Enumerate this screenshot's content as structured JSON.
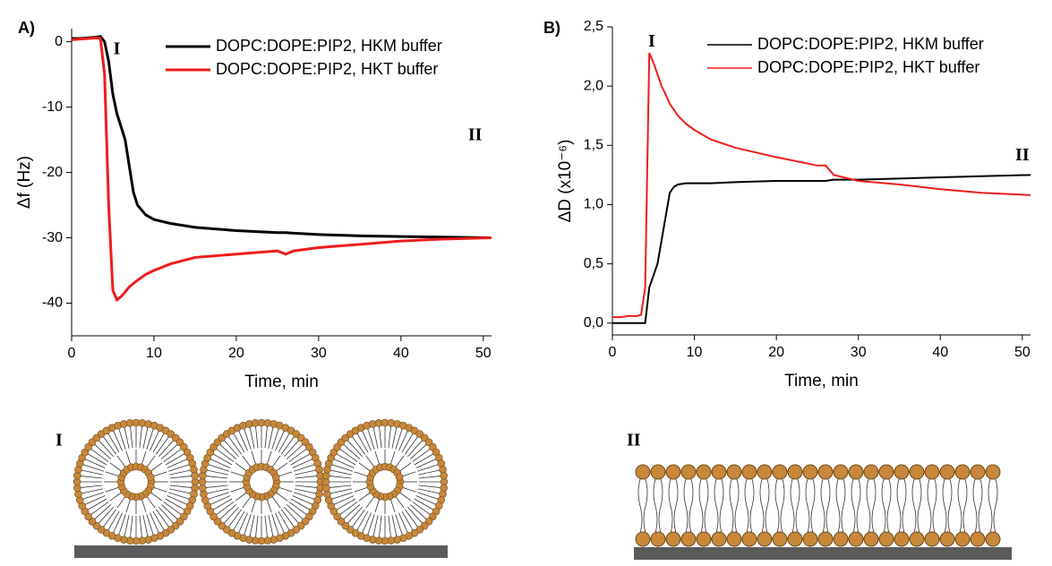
{
  "chart_data": [
    {
      "type": "line",
      "panel": "A)",
      "xlabel": "Time, min",
      "ylabel": "Δf (Hz)",
      "xlim": [
        0,
        51
      ],
      "ylim": [
        -45,
        2
      ],
      "xticks": [
        0,
        10,
        20,
        30,
        40,
        50
      ],
      "yticks": [
        0,
        -10,
        -20,
        -30,
        -40
      ],
      "annotations": [
        "I",
        "II"
      ],
      "legend": "top-right",
      "x": [
        0,
        1,
        2,
        3,
        3.5,
        4,
        4.5,
        5,
        5.5,
        6,
        6.5,
        7,
        7.5,
        8,
        9,
        10,
        12,
        15,
        20,
        25,
        26,
        27,
        30,
        35,
        40,
        45,
        51
      ],
      "series": [
        {
          "name": "DOPC:DOPE:PIP2, HKM buffer",
          "color": "#000000",
          "values": [
            0.5,
            0.5,
            0.6,
            0.7,
            0.8,
            0,
            -3,
            -8,
            -11,
            -13,
            -15,
            -19,
            -23,
            -25,
            -26.5,
            -27.2,
            -27.8,
            -28.4,
            -28.9,
            -29.2,
            -29.2,
            -29.3,
            -29.5,
            -29.7,
            -29.8,
            -29.9,
            -30
          ]
        },
        {
          "name": "DOPC:DOPE:PIP2, HKT buffer",
          "color": "#ee1c1c",
          "values": [
            0.3,
            0.4,
            0.5,
            0.6,
            0.5,
            -5,
            -25,
            -38,
            -39.5,
            -39,
            -38.3,
            -37.5,
            -37,
            -36.5,
            -35.6,
            -35,
            -34,
            -33,
            -32.5,
            -32,
            -32.5,
            -32,
            -31.5,
            -31,
            -30.5,
            -30.2,
            -30
          ]
        }
      ]
    },
    {
      "type": "line",
      "panel": "B)",
      "xlabel": "Time, min",
      "ylabel": "ΔD (x10⁻⁶)",
      "xlim": [
        0,
        51
      ],
      "ylim": [
        -0.1,
        2.5
      ],
      "xticks": [
        0,
        10,
        20,
        30,
        40,
        50
      ],
      "yticks": [
        {
          "value": 0,
          "label": "0,0"
        },
        {
          "value": 0.5,
          "label": "0,5"
        },
        {
          "value": 1,
          "label": "1,0"
        },
        {
          "value": 1.5,
          "label": "1,5"
        },
        {
          "value": 2,
          "label": "2,0"
        },
        {
          "value": 2.5,
          "label": "2,5"
        }
      ],
      "annotations": [
        "I",
        "II"
      ],
      "legend": "top-right",
      "x": [
        0,
        1,
        2,
        3,
        3.5,
        4,
        4.5,
        5,
        5.5,
        6,
        6.5,
        7,
        7.5,
        8,
        9,
        10,
        12,
        15,
        20,
        25,
        26,
        27,
        30,
        35,
        40,
        45,
        51
      ],
      "series": [
        {
          "name": "DOPC:DOPE:PIP2, HKM buffer",
          "color": "#000000",
          "values": [
            0,
            0,
            0,
            0,
            0,
            0,
            0.3,
            0.4,
            0.5,
            0.7,
            0.9,
            1.1,
            1.15,
            1.17,
            1.18,
            1.18,
            1.18,
            1.19,
            1.2,
            1.2,
            1.2,
            1.21,
            1.21,
            1.22,
            1.23,
            1.24,
            1.25
          ]
        },
        {
          "name": "DOPC:DOPE:PIP2, HKT buffer",
          "color": "#ee1c1c",
          "values": [
            0.05,
            0.05,
            0.06,
            0.06,
            0.07,
            0.3,
            2.28,
            2.2,
            2.1,
            2.0,
            1.93,
            1.85,
            1.8,
            1.75,
            1.68,
            1.63,
            1.55,
            1.48,
            1.4,
            1.33,
            1.33,
            1.25,
            1.2,
            1.17,
            1.13,
            1.1,
            1.08
          ]
        }
      ]
    }
  ],
  "diagrams": [
    {
      "label": "I"
    },
    {
      "label": "II"
    }
  ]
}
